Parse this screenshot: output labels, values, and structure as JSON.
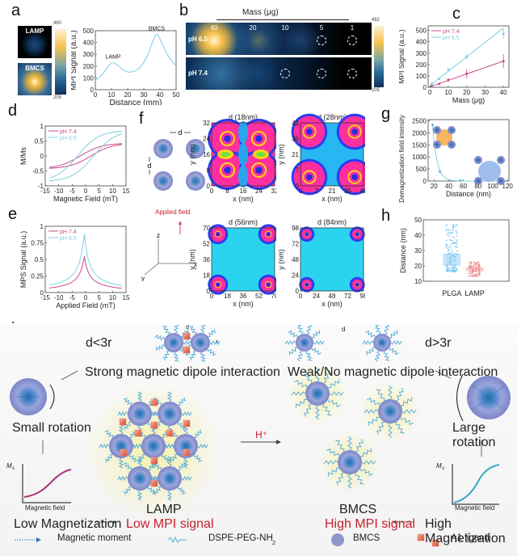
{
  "panels": {
    "a": "a",
    "b": "b",
    "c": "c",
    "d": "d",
    "e": "e",
    "f": "f",
    "g": "g",
    "h": "h",
    "i": "i"
  },
  "panel_a": {
    "image_labels": [
      "LAMP",
      "BMCS"
    ],
    "colorbar": {
      "max": "460",
      "min": "205"
    }
  },
  "panel_b": {
    "header": "Mass (μg)",
    "columns": [
      "40",
      "20",
      "10",
      "5",
      "1"
    ],
    "rows": [
      "pH 6.5",
      "pH 7.4"
    ],
    "colorbar": {
      "max": "482",
      "min": "205"
    }
  },
  "panel_f": {
    "schematic_label": "d",
    "applied_field": "Applied field",
    "axes": {
      "z": "z",
      "x": "x",
      "y": "y"
    },
    "maps": [
      {
        "title": "d (18nm)",
        "ticks": [
          "0",
          "8",
          "16",
          "24",
          "32"
        ]
      },
      {
        "title": "d (28nm)",
        "ticks": [
          "0",
          "7",
          "21",
          "35",
          "42"
        ]
      },
      {
        "title": "d (56nm)",
        "ticks": [
          "0",
          "18",
          "36",
          "52",
          "70"
        ]
      },
      {
        "title": "d (84nm)",
        "ticks": [
          "0",
          "24",
          "48",
          "72",
          "98"
        ]
      }
    ],
    "xlabel": "x (nm)",
    "ylabel": "y (nm)"
  },
  "panel_i": {
    "d_label": "d",
    "r_label": "r",
    "d_less": "d<3r",
    "d_greater": "d>3r",
    "strong": "Strong magnetic dipole interaction",
    "weak": "Weak/No magnetic dipole interaction",
    "small_rotation": "Small rotation",
    "large_rotation": "Large rotation",
    "ms": "M",
    "ms_sub": "s",
    "magnetic_field": "Magnetic field",
    "lamp": "LAMP",
    "bmcs": "BMCS",
    "h_plus": "H⁺",
    "low_mag": "Low Magnetization",
    "low_mpi": "Low MPI signal",
    "high_mag": "High Magnetization",
    "high_mpi": "High MPI signal",
    "legend": {
      "moment": "Magnetic moment",
      "peg": "DSPE-PEG-NH",
      "peg_sub": "2",
      "bmcs": "BMCS",
      "ligand": "A1 ligand"
    }
  },
  "colors": {
    "ph74": "#c94b8c",
    "ph65": "#7fd0e0",
    "line_a": "#8fd3e8",
    "red_text": "#c8202e",
    "plga": "#7cc4f2",
    "lamp": "#f08f8f"
  },
  "chart_data": [
    {
      "id": "a",
      "type": "line",
      "title": "",
      "xlabel": "Distance (mm)",
      "ylabel": "MPI Signal (a.u.)",
      "xlim": [
        0,
        50
      ],
      "ylim": [
        0,
        500
      ],
      "xticks": [
        "0",
        "10",
        "20",
        "30",
        "40",
        "50"
      ],
      "yticks": [
        "0",
        "100",
        "200",
        "300",
        "400",
        "500"
      ],
      "x": [
        0,
        5,
        8,
        11,
        14,
        18,
        22,
        27,
        32,
        35,
        38,
        41,
        45,
        50
      ],
      "y": [
        75,
        140,
        200,
        230,
        205,
        160,
        150,
        180,
        280,
        390,
        470,
        400,
        290,
        200
      ],
      "annotations": [
        {
          "text": "LAMP",
          "x": 11,
          "y": 230
        },
        {
          "text": "BMCS",
          "x": 38,
          "y": 470
        }
      ]
    },
    {
      "id": "c",
      "type": "line",
      "xlabel": "Mass (μg)",
      "ylabel": "MPI Signal (a.u.)",
      "xlim": [
        0,
        42
      ],
      "ylim": [
        0,
        550
      ],
      "xticks": [
        "0",
        "10",
        "20",
        "30",
        "40"
      ],
      "yticks": [
        "0",
        "100",
        "200",
        "300",
        "400",
        "500"
      ],
      "series": [
        {
          "name": "pH 7.4",
          "x": [
            1,
            5,
            10,
            20,
            40
          ],
          "y": [
            10,
            30,
            65,
            120,
            230
          ],
          "err": [
            5,
            8,
            15,
            40,
            60
          ],
          "fit": [
            [
              0,
              5
            ],
            [
              40,
              230
            ]
          ]
        },
        {
          "name": "pH 6.5",
          "x": [
            1,
            5,
            10,
            20,
            40
          ],
          "y": [
            30,
            75,
            155,
            270,
            470
          ],
          "err": [
            5,
            8,
            15,
            25,
            45
          ],
          "fit": [
            [
              0,
              15
            ],
            [
              40,
              520
            ]
          ]
        }
      ],
      "legend": "top-left"
    },
    {
      "id": "d",
      "type": "line",
      "xlabel": "Magnetic Field (mT)",
      "ylabel": "M/Ms",
      "xlim": [
        -15,
        15
      ],
      "ylim": [
        -1,
        1
      ],
      "xticks": [
        "-15",
        "-10",
        "-5",
        "0",
        "5",
        "10",
        "15"
      ],
      "yticks": [
        "-1",
        "-0.5",
        "0",
        "0.5",
        "1"
      ],
      "series": [
        {
          "name": "pH 7.4",
          "loop_amplitude": 0.4,
          "coercivity": 2
        },
        {
          "name": "pH 6.5",
          "loop_amplitude": 0.8,
          "coercivity": 3
        }
      ],
      "legend": "top-left"
    },
    {
      "id": "e",
      "type": "line",
      "xlabel": "Applied Field (mT)",
      "ylabel": "MPS Signal (a.u.)",
      "xlim": [
        -15,
        15
      ],
      "ylim": [
        0,
        1
      ],
      "xticks": [
        "-15",
        "-10",
        "-5",
        "0",
        "5",
        "10",
        "15"
      ],
      "yticks": [
        "0",
        "0.25",
        "0.5",
        "0.75",
        "1"
      ],
      "series": [
        {
          "name": "pH 7.4",
          "peak": 0.56,
          "center": -0.5,
          "width": 4
        },
        {
          "name": "pH 6.5",
          "peak": 0.91,
          "center": -0.5,
          "width": 4
        }
      ],
      "legend": "top-left"
    },
    {
      "id": "g",
      "type": "scatter",
      "xlabel": "Distance (nm)",
      "ylabel": "Demagnetization field intensity (a.u.)",
      "xlim": [
        15,
        120
      ],
      "ylim": [
        0,
        2500
      ],
      "xticks": [
        "20",
        "40",
        "60",
        "80",
        "100",
        "120"
      ],
      "yticks": [
        "0",
        "500",
        "1000",
        "1500",
        "2000",
        "2500"
      ],
      "x": [
        18,
        28,
        56,
        84,
        112
      ],
      "y": [
        2330,
        390,
        20,
        5,
        2
      ]
    },
    {
      "id": "h",
      "type": "scatter",
      "xlabel": "",
      "ylabel": "Distance (nm)",
      "ylim": [
        10,
        50
      ],
      "yticks": [
        "10",
        "20",
        "30",
        "40",
        "50"
      ],
      "categories": [
        "PLGA",
        "LAMP"
      ],
      "boxes": [
        {
          "name": "PLGA",
          "q1": 20,
          "q3": 28,
          "min": 16,
          "max": 47,
          "center": 24
        },
        {
          "name": "LAMP",
          "q1": 16.5,
          "q3": 19,
          "min": 13,
          "max": 23,
          "center": 17.5
        }
      ]
    }
  ]
}
